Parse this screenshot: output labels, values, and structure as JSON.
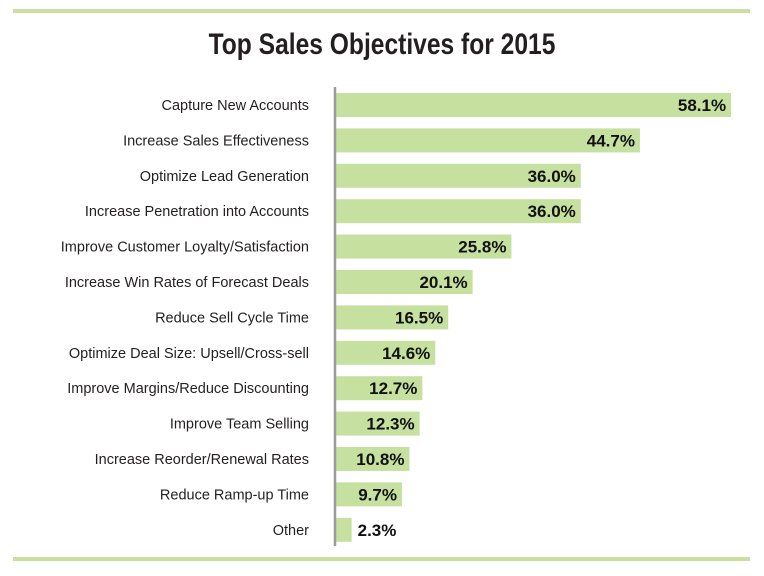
{
  "chart_data": {
    "type": "bar",
    "orientation": "horizontal",
    "title": "Top Sales Objectives for 2015",
    "xlabel": "",
    "ylabel": "",
    "xlim": [
      0,
      60
    ],
    "grid": false,
    "legend": "none",
    "bar_color": "#c6e0a0",
    "accent_rule_color": "#c9e09f",
    "axis_color": "#9a9a9a",
    "categories": [
      "Capture New Accounts",
      "Increase Sales Effectiveness",
      "Optimize Lead Generation",
      "Increase Penetration into Accounts",
      "Improve Customer Loyalty/Satisfaction",
      "Increase Win Rates of Forecast Deals",
      "Reduce Sell Cycle Time",
      "Optimize Deal Size: Upsell/Cross-sell",
      "Improve Margins/Reduce Discounting",
      "Improve Team Selling",
      "Increase Reorder/Renewal Rates",
      "Reduce Ramp-up Time",
      "Other"
    ],
    "values": [
      58.1,
      44.7,
      36.0,
      36.0,
      25.8,
      20.1,
      16.5,
      14.6,
      12.7,
      12.3,
      10.8,
      9.7,
      2.3
    ],
    "value_labels": [
      "58.1%",
      "44.7%",
      "36.0%",
      "36.0%",
      "25.8%",
      "20.1%",
      "16.5%",
      "14.6%",
      "12.7%",
      "12.3%",
      "10.8%",
      "9.7%",
      "2.3%"
    ]
  }
}
